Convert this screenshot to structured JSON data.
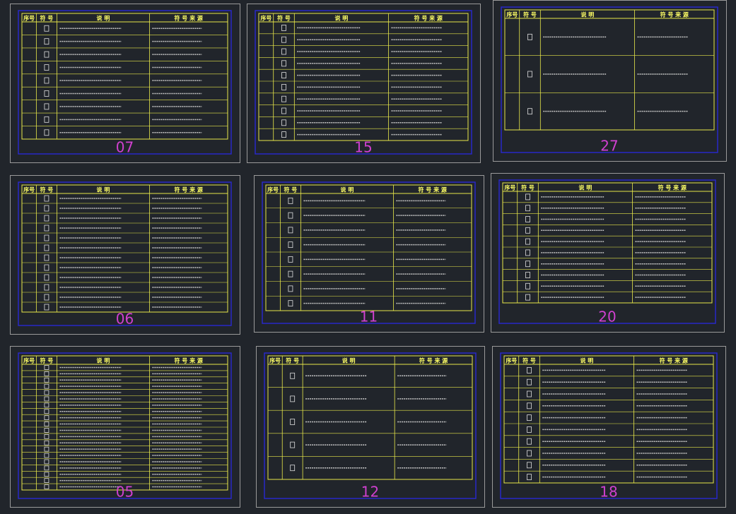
{
  "table_header": {
    "index": "序号",
    "symbol": "符 号",
    "description": "说 明",
    "source": "符 号 来 源"
  },
  "sheets": [
    {
      "label": "07"
    },
    {
      "label": "15"
    },
    {
      "label": "27"
    },
    {
      "label": "06"
    },
    {
      "label": "11"
    },
    {
      "label": "20"
    },
    {
      "label": "05"
    },
    {
      "label": "12"
    },
    {
      "label": "18"
    }
  ]
}
